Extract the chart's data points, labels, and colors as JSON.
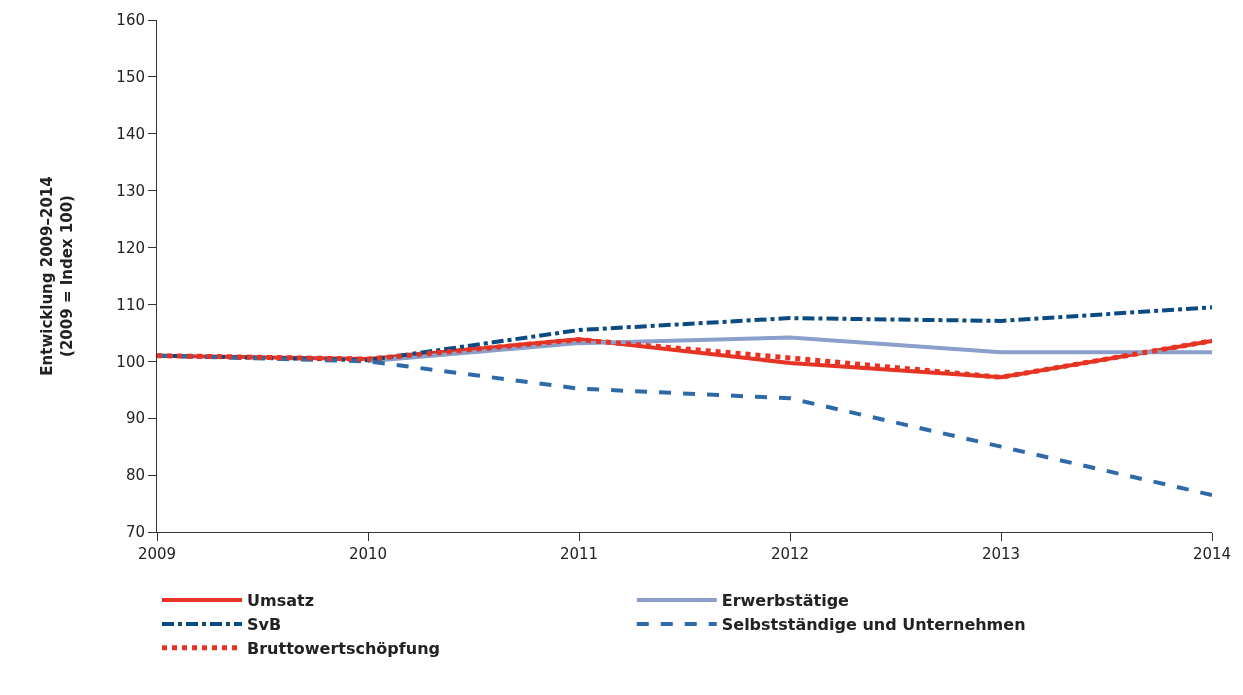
{
  "chart_data": {
    "type": "line",
    "ylabel": "Entwicklung 2009–2014\n(2009 = Index 100)",
    "x": [
      2009,
      2010,
      2011,
      2012,
      2013,
      2014
    ],
    "xlim": [
      2009,
      2014
    ],
    "xticks": [
      2009,
      2010,
      2011,
      2012,
      2013,
      2014
    ],
    "ylim": [
      70,
      160
    ],
    "yticks": [
      70,
      80,
      90,
      100,
      110,
      120,
      130,
      140,
      150,
      160
    ],
    "grid": false,
    "legend": "bottom",
    "marker": "none",
    "series": [
      {
        "name": "Umsatz",
        "color": "#e63323",
        "line_style": "solid",
        "values": [
          101.0,
          100.4,
          103.9,
          99.7,
          97.2,
          103.6
        ]
      },
      {
        "name": "Erwerbstätige",
        "color": "#8b9fcb",
        "line_style": "solid",
        "values": [
          null,
          100.0,
          103.2,
          104.2,
          101.6,
          101.6
        ]
      },
      {
        "name": "SvB",
        "color": "#0b4a82",
        "line_style": "dashdot",
        "values": [
          101.0,
          100.2,
          105.5,
          107.6,
          107.1,
          109.5
        ]
      },
      {
        "name": "Selbstständige und Unternehmen",
        "color": "#2f6aa8",
        "line_style": "dashed",
        "values": [
          101.0,
          100.0,
          95.2,
          93.5,
          85.0,
          76.5
        ]
      },
      {
        "name": "Bruttowertschöpfung",
        "color": "#e63323",
        "line_style": "dotted",
        "values": [
          101.0,
          100.4,
          103.8,
          100.6,
          97.2,
          103.6
        ]
      }
    ]
  }
}
